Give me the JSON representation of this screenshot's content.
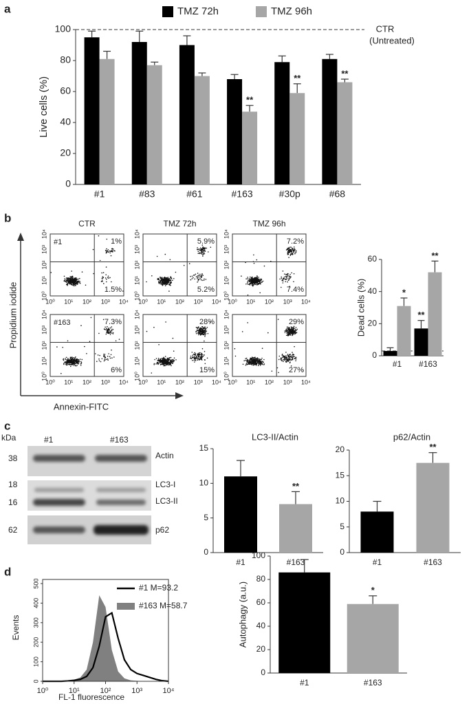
{
  "panel_labels": [
    "a",
    "b",
    "c",
    "d"
  ],
  "chart_data": [
    {
      "type": "bar",
      "ylabel": "Live cells (%)",
      "categories": [
        "#1",
        "#83",
        "#61",
        "#163",
        "#30p",
        "#68"
      ],
      "series": [
        {
          "name": "TMZ 72h",
          "color": "#000000",
          "values": [
            95,
            92,
            90,
            68,
            79,
            81
          ],
          "errors": [
            4,
            7,
            6,
            3,
            4,
            3
          ]
        },
        {
          "name": "TMZ 96h",
          "color": "#a6a6a6",
          "values": [
            81,
            77,
            70,
            47,
            59,
            66
          ],
          "errors": [
            5,
            2,
            2,
            4,
            6,
            2
          ],
          "annotations": [
            null,
            null,
            null,
            "**",
            "**",
            "**"
          ]
        }
      ],
      "ylim": [
        0,
        100
      ],
      "yticks": [
        0,
        20,
        40,
        60,
        80,
        100
      ],
      "reference_line": 100,
      "reference_label": [
        "CTR",
        "(Untreated)"
      ]
    },
    {
      "type": "bar",
      "ylabel": "Dead cells (%)",
      "categories": [
        "#1",
        "#163"
      ],
      "series": [
        {
          "color": "#000000",
          "values": [
            3,
            17
          ],
          "errors": [
            2,
            5
          ],
          "annotations": [
            null,
            "**"
          ]
        },
        {
          "color": "#a6a6a6",
          "values": [
            31,
            52
          ],
          "errors": [
            5,
            7
          ],
          "annotations": [
            "*",
            "**"
          ]
        }
      ],
      "ylim": [
        0,
        60
      ],
      "yticks": [
        0,
        20,
        40,
        60
      ],
      "reference_line": 3
    },
    {
      "type": "bar",
      "title": "LC3-II/Actin",
      "categories": [
        "#1",
        "#163"
      ],
      "values": [
        11,
        7
      ],
      "errors": [
        2.3,
        1.8
      ],
      "colors": [
        "#000000",
        "#a6a6a6"
      ],
      "annotations": [
        null,
        "**"
      ],
      "ylim": [
        0,
        15
      ],
      "yticks": [
        0,
        5,
        10,
        15
      ]
    },
    {
      "type": "bar",
      "title": "p62/Actin",
      "categories": [
        "#1",
        "#163"
      ],
      "values": [
        8,
        17.5
      ],
      "errors": [
        2,
        2
      ],
      "colors": [
        "#000000",
        "#a6a6a6"
      ],
      "annotations": [
        null,
        "**"
      ],
      "ylim": [
        0,
        20
      ],
      "yticks": [
        0,
        5,
        10,
        15,
        20
      ]
    },
    {
      "type": "line",
      "xlabel": "FL-1 fluorescence",
      "ylabel": "Events",
      "x": [
        0,
        0.2,
        0.4,
        0.6,
        0.8,
        1,
        1.2,
        1.4,
        1.6,
        1.8,
        2,
        2.2,
        2.4,
        2.6,
        2.8,
        3,
        3.2,
        3.4,
        3.6,
        3.8,
        4
      ],
      "series": [
        {
          "name": "#1 M=93.2",
          "color": "#000000",
          "style": "line",
          "values": [
            0,
            0,
            0,
            0,
            2,
            5,
            10,
            25,
            70,
            180,
            330,
            350,
            220,
            110,
            60,
            40,
            30,
            20,
            10,
            3,
            0
          ]
        },
        {
          "name": "#163 M=58.7",
          "color": "#808080",
          "style": "area",
          "values": [
            0,
            0,
            0,
            2,
            4,
            8,
            20,
            60,
            200,
            440,
            380,
            160,
            50,
            15,
            5,
            2,
            1,
            0,
            0,
            0,
            0
          ]
        }
      ],
      "xlim": [
        0,
        4
      ],
      "xticks": [
        {
          "value": 0,
          "label": "10⁰"
        },
        {
          "value": 1,
          "label": "10¹"
        },
        {
          "value": 2,
          "label": "10²"
        },
        {
          "value": 3,
          "label": "10³"
        },
        {
          "value": 4,
          "label": "10⁴"
        }
      ],
      "ylim": [
        0,
        500
      ],
      "yticks": [
        0,
        100,
        200,
        300,
        400,
        500
      ]
    },
    {
      "type": "bar",
      "ylabel": "Autophagy (a.u.)",
      "categories": [
        "#1",
        "#163"
      ],
      "values": [
        86,
        59
      ],
      "errors": [
        11,
        7
      ],
      "colors": [
        "#000000",
        "#a6a6a6"
      ],
      "annotations": [
        null,
        "*"
      ],
      "ylim": [
        0,
        100
      ],
      "yticks": [
        0,
        20,
        40,
        60,
        80,
        100
      ]
    }
  ],
  "flow_cytometry": {
    "ylabel": "Propidium iodide",
    "xlabel": "Annexin-FITC",
    "columns": [
      "CTR",
      "TMZ 72h",
      "TMZ 96h"
    ],
    "rows": [
      "#1",
      "#163"
    ],
    "axis_ticks": [
      "10⁰",
      "10¹",
      "10²",
      "10³",
      "10⁴"
    ],
    "quadrants": [
      [
        [
          "1%",
          "1.5%"
        ],
        [
          "5.9%",
          "5.2%"
        ],
        [
          "7.2%",
          "7.4%"
        ]
      ],
      [
        [
          "7.3%",
          "6%"
        ],
        [
          "28%",
          "15%"
        ],
        [
          "29%",
          "27%"
        ]
      ]
    ]
  },
  "western_blot": {
    "unit": "kDa",
    "lanes": [
      "#1",
      "#163"
    ],
    "markers": [
      "38",
      "18",
      "16",
      "62"
    ],
    "bands": [
      "Actin",
      "LC3-I",
      "LC3-II",
      "p62"
    ]
  }
}
